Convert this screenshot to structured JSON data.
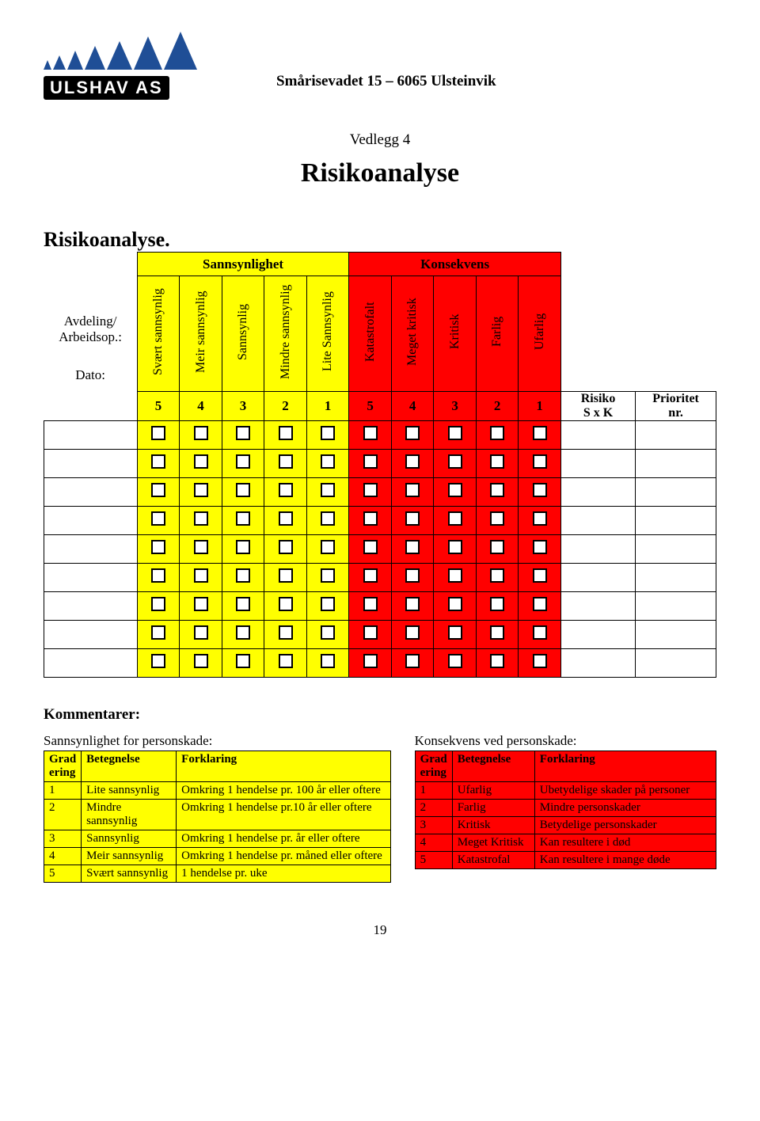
{
  "colors": {
    "yellow": "#ffff00",
    "red": "#ff0000",
    "logo_blue": "#1f4e96",
    "text": "#000000",
    "bg": "#ffffff"
  },
  "logo": {
    "company": "ULSHAV AS",
    "address": "Smårisevadet 15 – 6065 Ulsteinvik",
    "triangles": [
      12,
      18,
      24,
      30,
      36,
      42,
      48
    ]
  },
  "attachment_label": "Vedlegg 4",
  "main_title": "Risikoanalyse",
  "section_title": "Risikoanalyse.",
  "left_labels": {
    "avd": "Avdeling/ Arbeidsop.:",
    "dato": "Dato:"
  },
  "matrix": {
    "group_left": "Sannsynlighet",
    "group_right": "Konsekvens",
    "prob_cols": [
      {
        "label": "Svært sannsynlig",
        "num": "5"
      },
      {
        "label": "Meir sannsynlig",
        "num": "4"
      },
      {
        "label": "Sannsynlig",
        "num": "3"
      },
      {
        "label": "Mindre sannsynlig",
        "num": "2"
      },
      {
        "label": "Lite Sannsynlig",
        "num": "1"
      }
    ],
    "cons_cols": [
      {
        "label": "Katastrofalt",
        "num": "5"
      },
      {
        "label": "Meget kritisk",
        "num": "4"
      },
      {
        "label": "Kritisk",
        "num": "3"
      },
      {
        "label": "Farlig",
        "num": "2"
      },
      {
        "label": "Ufarlig",
        "num": "1"
      }
    ],
    "risk_col": "Risiko S x K",
    "prio_col": "Prioritet nr.",
    "data_rows": 9
  },
  "comments_label": "Kommentarer:",
  "prob_legend": {
    "title": "Sannsynlighet for personskade:",
    "headers": [
      "Grad ering",
      "Betegnelse",
      "Forklaring"
    ],
    "rows": [
      [
        "1",
        "Lite sannsynlig",
        "Omkring 1 hendelse pr. 100 år eller oftere"
      ],
      [
        "2",
        "Mindre sannsynlig",
        "Omkring 1 hendelse pr.10 år eller oftere"
      ],
      [
        "3",
        "Sannsynlig",
        "Omkring 1 hendelse pr. år eller oftere"
      ],
      [
        "4",
        "Meir sannsynlig",
        "Omkring 1 hendelse pr. måned eller oftere"
      ],
      [
        "5",
        "Svært sannsynlig",
        "1 hendelse pr. uke"
      ]
    ],
    "col_widths": [
      "46px",
      "120px",
      "auto"
    ]
  },
  "cons_legend": {
    "title": "Konsekvens ved personskade:",
    "headers": [
      "Grad ering",
      "Betegnelse",
      "Forklaring"
    ],
    "rows": [
      [
        "1",
        "Ufarlig",
        "Ubetydelige skader på personer"
      ],
      [
        "2",
        "Farlig",
        "Mindre personskader"
      ],
      [
        "3",
        "Kritisk",
        "Betydelige personskader"
      ],
      [
        "4",
        "Meget Kritisk",
        "Kan resultere i død"
      ],
      [
        "5",
        "Katastrofal",
        "Kan resultere i mange døde"
      ]
    ],
    "col_widths": [
      "46px",
      "104px",
      "auto"
    ]
  },
  "page_number": "19"
}
